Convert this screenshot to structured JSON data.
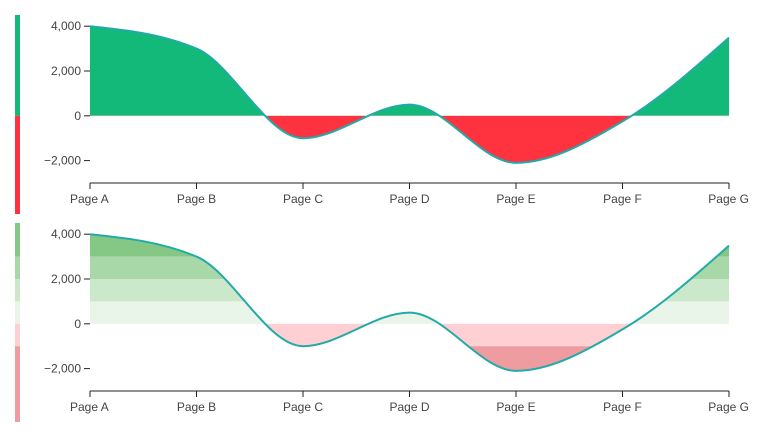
{
  "chart_data": [
    {
      "type": "area",
      "title": "",
      "xlabel": "",
      "ylabel": "",
      "categories": [
        "Page A",
        "Page B",
        "Page C",
        "Page D",
        "Page E",
        "Page F",
        "Page G"
      ],
      "series": [
        {
          "values": [
            4000,
            3000,
            -1000,
            500,
            -2100,
            -250,
            3490
          ]
        }
      ],
      "ylim": [
        -3000,
        4500
      ],
      "yticks": [
        -2000,
        0,
        2000,
        4000
      ],
      "ytick_labels": [
        "−2,000",
        "0",
        "2,000",
        "4,000"
      ],
      "fill": "split",
      "colors": {
        "positive": "#13b979",
        "negative": "#ff323f",
        "line": "#22aaa8"
      },
      "grid": false
    },
    {
      "type": "area",
      "title": "",
      "xlabel": "",
      "ylabel": "",
      "categories": [
        "Page A",
        "Page B",
        "Page C",
        "Page D",
        "Page E",
        "Page F",
        "Page G"
      ],
      "series": [
        {
          "values": [
            4000,
            3000,
            -1000,
            500,
            -2100,
            -250,
            3490
          ]
        }
      ],
      "ylim": [
        -3000,
        4500
      ],
      "yticks": [
        -2000,
        0,
        2000,
        4000
      ],
      "ytick_labels": [
        "−2,000",
        "0",
        "2,000",
        "4,000"
      ],
      "fill": "banded",
      "bands": [
        {
          "from": 3000,
          "to": 4500,
          "color": "#85c785"
        },
        {
          "from": 2000,
          "to": 3000,
          "color": "#a8d8a8"
        },
        {
          "from": 1000,
          "to": 2000,
          "color": "#cbe8cb"
        },
        {
          "from": 0,
          "to": 1000,
          "color": "#e8f5e8"
        },
        {
          "from": -1000,
          "to": 0,
          "color": "#ffd0d3"
        },
        {
          "from": -3000,
          "to": -1000,
          "color": "#ef9ca0"
        }
      ],
      "colors": {
        "line": "#22aaa8"
      },
      "grid": false
    }
  ]
}
